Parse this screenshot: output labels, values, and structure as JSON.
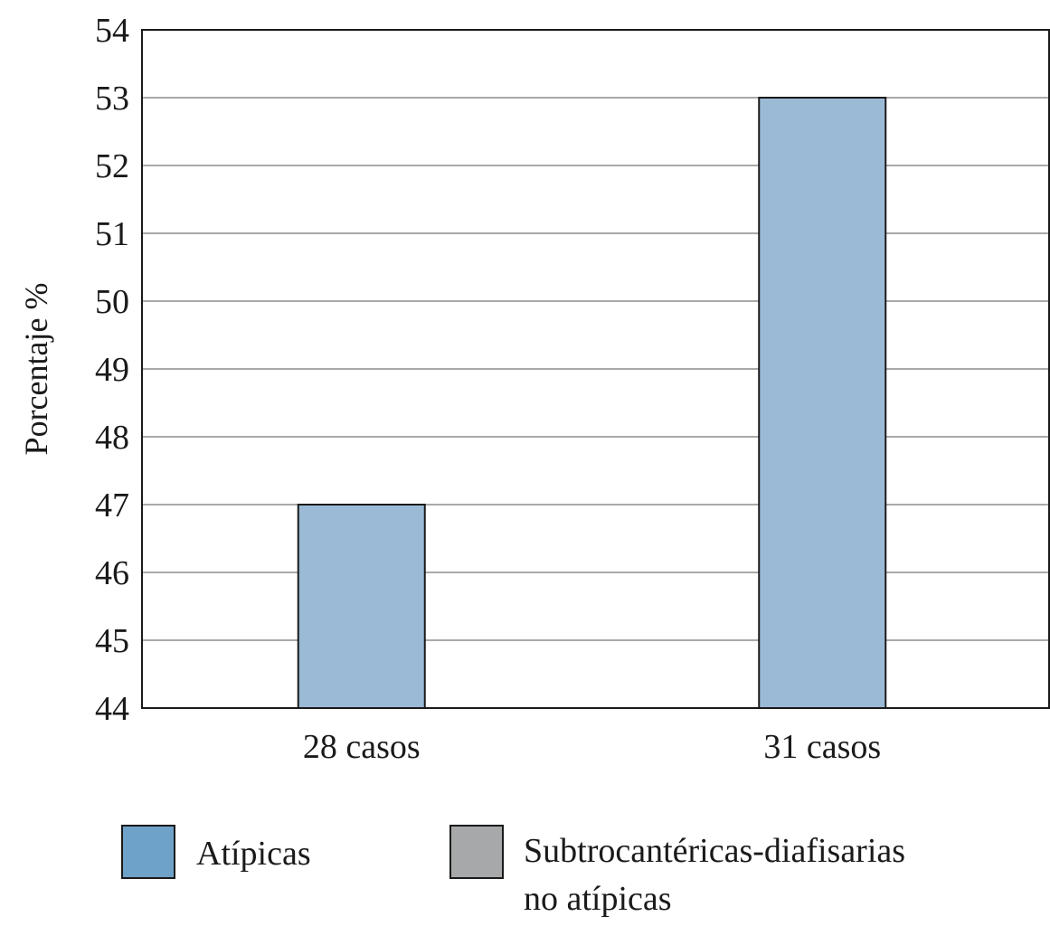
{
  "chart_data": {
    "type": "bar",
    "title": "",
    "xlabel": "",
    "ylabel": "Porcentaje %",
    "ylim": [
      44,
      54
    ],
    "yticks": [
      44,
      45,
      46,
      47,
      48,
      49,
      50,
      51,
      52,
      53,
      54
    ],
    "grid": true,
    "categories": [
      "28 casos",
      "31 casos"
    ],
    "values": [
      47,
      53
    ],
    "bar_color": "#9bbad6",
    "legend_position": "bottom",
    "legend": [
      {
        "label": "Atípicas",
        "color": "#6fa2c8"
      },
      {
        "label_line1": "Subtrocantéricas-diafisarias",
        "label_line2": "no atípicas",
        "color": "#a7a8aa"
      }
    ]
  }
}
